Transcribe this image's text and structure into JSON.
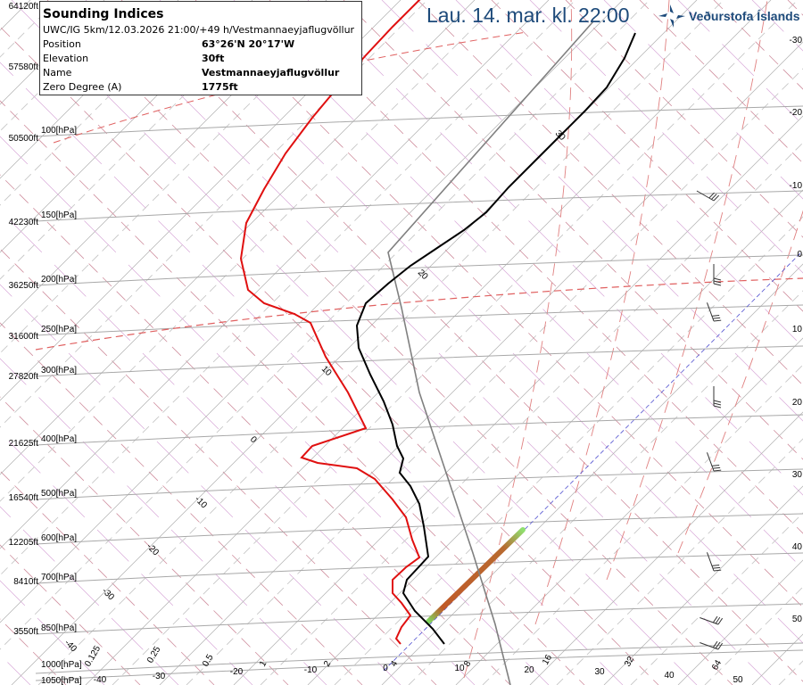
{
  "header": {
    "title": "Lau. 14. mar. kl. 22:00",
    "logo_text": "Veðurstofa Íslands"
  },
  "info": {
    "title": "Sounding Indices",
    "model_line": "UWC/IG 5km/12.03.2026 21:00/+49 h/Vestmannaeyjaflugvöllur",
    "rows": [
      {
        "label": "Position",
        "value": "63°26'N 20°17'W"
      },
      {
        "label": "Elevation",
        "value": "30ft"
      },
      {
        "label": "Name",
        "value": "Vestmannaeyjaflugvöllur"
      },
      {
        "label": "Zero Degree (A)",
        "value": "1775ft"
      }
    ]
  },
  "altitude_labels": [
    "64120ft",
    "57580ft",
    "50500ft",
    "42230ft",
    "36250ft",
    "31600ft",
    "27820ft",
    "21625ft",
    "16540ft",
    "12205ft",
    "8410ft",
    "3550ft"
  ],
  "pressure_labels": [
    "100[hPa]",
    "150[hPa]",
    "200[hPa]",
    "250[hPa]",
    "300[hPa]",
    "400[hPa]",
    "500[hPa]",
    "600[hPa]",
    "700[hPa]",
    "850[hPa]",
    "1000[hPa]",
    "1050[hPa]"
  ],
  "right_labels": [
    "-30",
    "-20",
    "-10",
    "0",
    "10",
    "20",
    "30",
    "40",
    "50"
  ],
  "bottom_temp_labels": [
    "-40",
    "-30",
    "-20",
    "-10",
    "0",
    "10",
    "20",
    "30",
    "40",
    "50"
  ],
  "mixing_ratio_labels": [
    "0.125",
    "0.25",
    "0.5",
    "1",
    "2",
    "4",
    "8",
    "16",
    "32",
    "64"
  ],
  "adiabat_labels": [
    "-40",
    "-30",
    "-20",
    "-10",
    "0",
    "10",
    "20",
    "30"
  ],
  "colors": {
    "temperature": "#000000",
    "dewpoint": "#e01010",
    "parcel": "#808080",
    "title": "#1d4a7a"
  }
}
